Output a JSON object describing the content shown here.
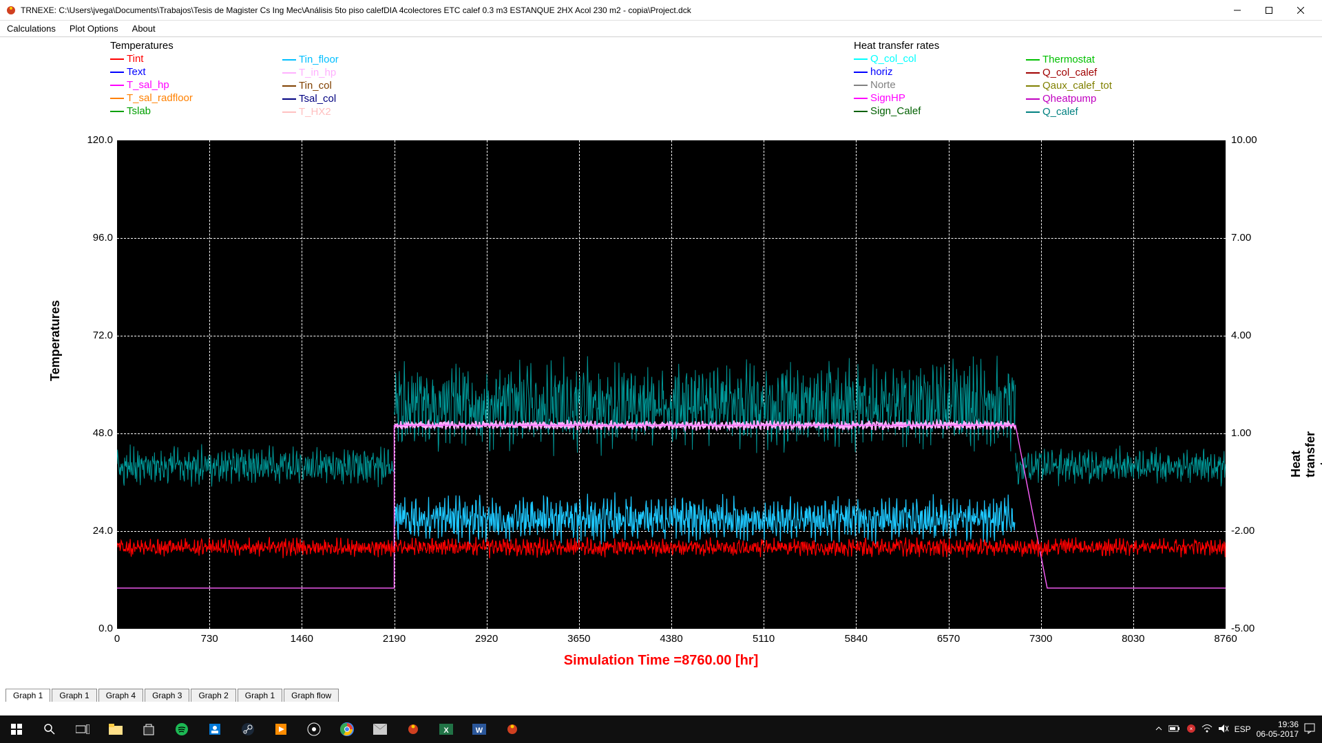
{
  "window": {
    "title": "TRNEXE: C:\\Users\\jvega\\Documents\\Trabajos\\Tesis de Magister  Cs Ing Mec\\Análisis 5to piso calefDIA  4colectores ETC calef  0.3 m3 ESTANQUE 2HX  Acol 230 m2 - copia\\Project.dck"
  },
  "menu": {
    "items": [
      "Calculations",
      "Plot Options",
      "About"
    ]
  },
  "legends": {
    "temperatures": {
      "title": "Temperatures",
      "col1": [
        {
          "label": "Tint",
          "color": "#ff0000"
        },
        {
          "label": "Text",
          "color": "#0000ff"
        },
        {
          "label": "T_sal_hp",
          "color": "#ff00ff"
        },
        {
          "label": "T_sal_radfloor",
          "color": "#ff8000"
        },
        {
          "label": "Tslab",
          "color": "#00a000"
        }
      ],
      "col2": [
        {
          "label": "Tin_floor",
          "color": "#00bfff"
        },
        {
          "label": "T_in_hp",
          "color": "#ffb0ff"
        },
        {
          "label": "Tin_col",
          "color": "#804000"
        },
        {
          "label": "Tsal_col",
          "color": "#000080"
        },
        {
          "label": "T_HX2",
          "color": "#ffc0c0"
        }
      ]
    },
    "heat": {
      "title": "Heat transfer rates",
      "col1": [
        {
          "label": "Q_col_col",
          "color": "#00ffff"
        },
        {
          "label": "horiz",
          "color": "#0000ff"
        },
        {
          "label": "Norte",
          "color": "#808080"
        },
        {
          "label": "SignHP",
          "color": "#ff00ff"
        },
        {
          "label": "Sign_Calef",
          "color": "#006000"
        }
      ],
      "col2": [
        {
          "label": "Thermostat",
          "color": "#00c000"
        },
        {
          "label": "Q_col_calef",
          "color": "#a00000"
        },
        {
          "label": "Qaux_calef_tot",
          "color": "#808000"
        },
        {
          "label": "Qheatpump",
          "color": "#c000c0"
        },
        {
          "label": "Q_calef",
          "color": "#008080"
        }
      ]
    }
  },
  "chart": {
    "plot_bg": "#000000",
    "grid_color": "#ffffff",
    "x": {
      "min": 0,
      "max": 8760,
      "ticks": [
        0,
        730,
        1460,
        2190,
        2920,
        3650,
        4380,
        5110,
        5840,
        6570,
        7300,
        8030,
        8760
      ]
    },
    "y_left": {
      "label": "Temperatures",
      "min": 0.0,
      "max": 120.0,
      "ticks": [
        0.0,
        24.0,
        48.0,
        72.0,
        96.0,
        120.0
      ]
    },
    "y_right": {
      "label": "Heat transfer rates",
      "min": -5.0,
      "max": 10.0,
      "ticks": [
        -5.0,
        -2.0,
        1.0,
        4.0,
        7.0,
        10.0
      ]
    },
    "sim_time_label": "Simulation Time =8760.00 [hr]",
    "series": {
      "tint": {
        "color": "#ff0000",
        "baseline": 20,
        "amp": 2.5,
        "x0": 0,
        "x1": 8760,
        "width": 1.2
      },
      "t_sal_hp": {
        "color": "#ff60ff",
        "baseline_before": 10,
        "baseline_on": 50,
        "x_on": 2190,
        "x_off": 7100,
        "width": 1.4
      },
      "tin_floor": {
        "color": "#1ec8ff",
        "baseline": 27,
        "amp": 6,
        "x0": 2190,
        "x1": 7100,
        "width": 1.2
      },
      "q_calef": {
        "color": "#009999",
        "baseline_out": 40,
        "amp_out": 5,
        "baseline_on": 55,
        "amp_on": 12,
        "x_on": 2190,
        "x_off": 7100,
        "width": 1
      },
      "t_in_hp": {
        "color": "#ffb0ff",
        "baseline": 50,
        "x0": 2190,
        "x1": 7100,
        "width": 2
      }
    }
  },
  "tabs": {
    "items": [
      "Graph 1",
      "Graph 1",
      "Graph 4",
      "Graph 3",
      "Graph 2",
      "Graph 1",
      "Graph flow"
    ],
    "active": 0
  },
  "taskbar": {
    "lang": "ESP",
    "time": "19:36",
    "date": "06-05-2017"
  }
}
